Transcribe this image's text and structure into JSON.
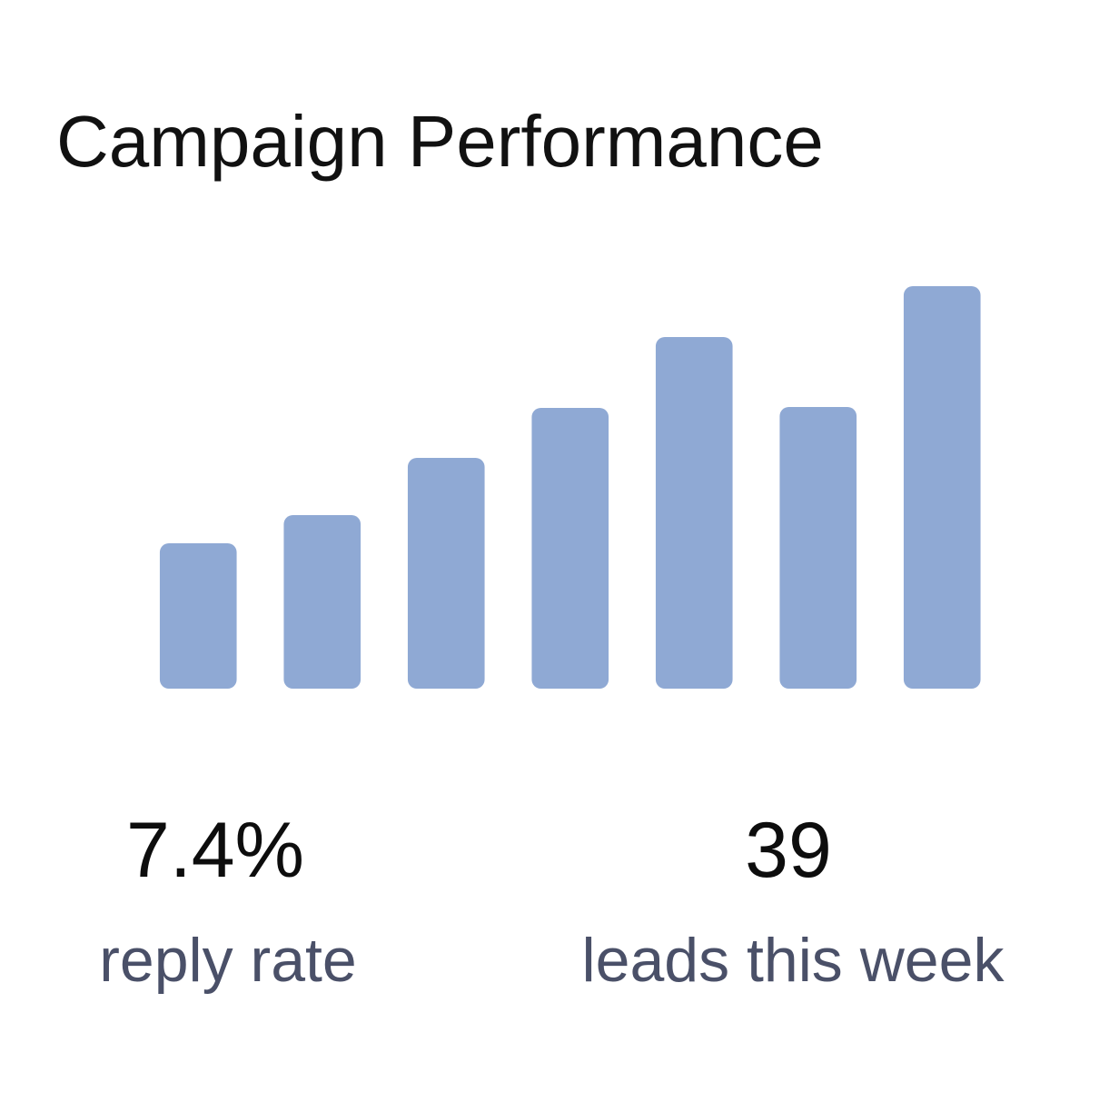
{
  "chart_data": {
    "type": "bar",
    "title": "Campaign Performance",
    "categories": [
      null,
      null,
      null,
      null,
      null,
      null,
      null
    ],
    "values": [
      160,
      191,
      254,
      309,
      387,
      310,
      443
    ],
    "color": "#8fa9d4",
    "ylim": [
      0,
      450
    ]
  },
  "stats": [
    {
      "value": "7.4%",
      "label": "reply rate"
    },
    {
      "value": "39",
      "label": "leads this week"
    }
  ]
}
